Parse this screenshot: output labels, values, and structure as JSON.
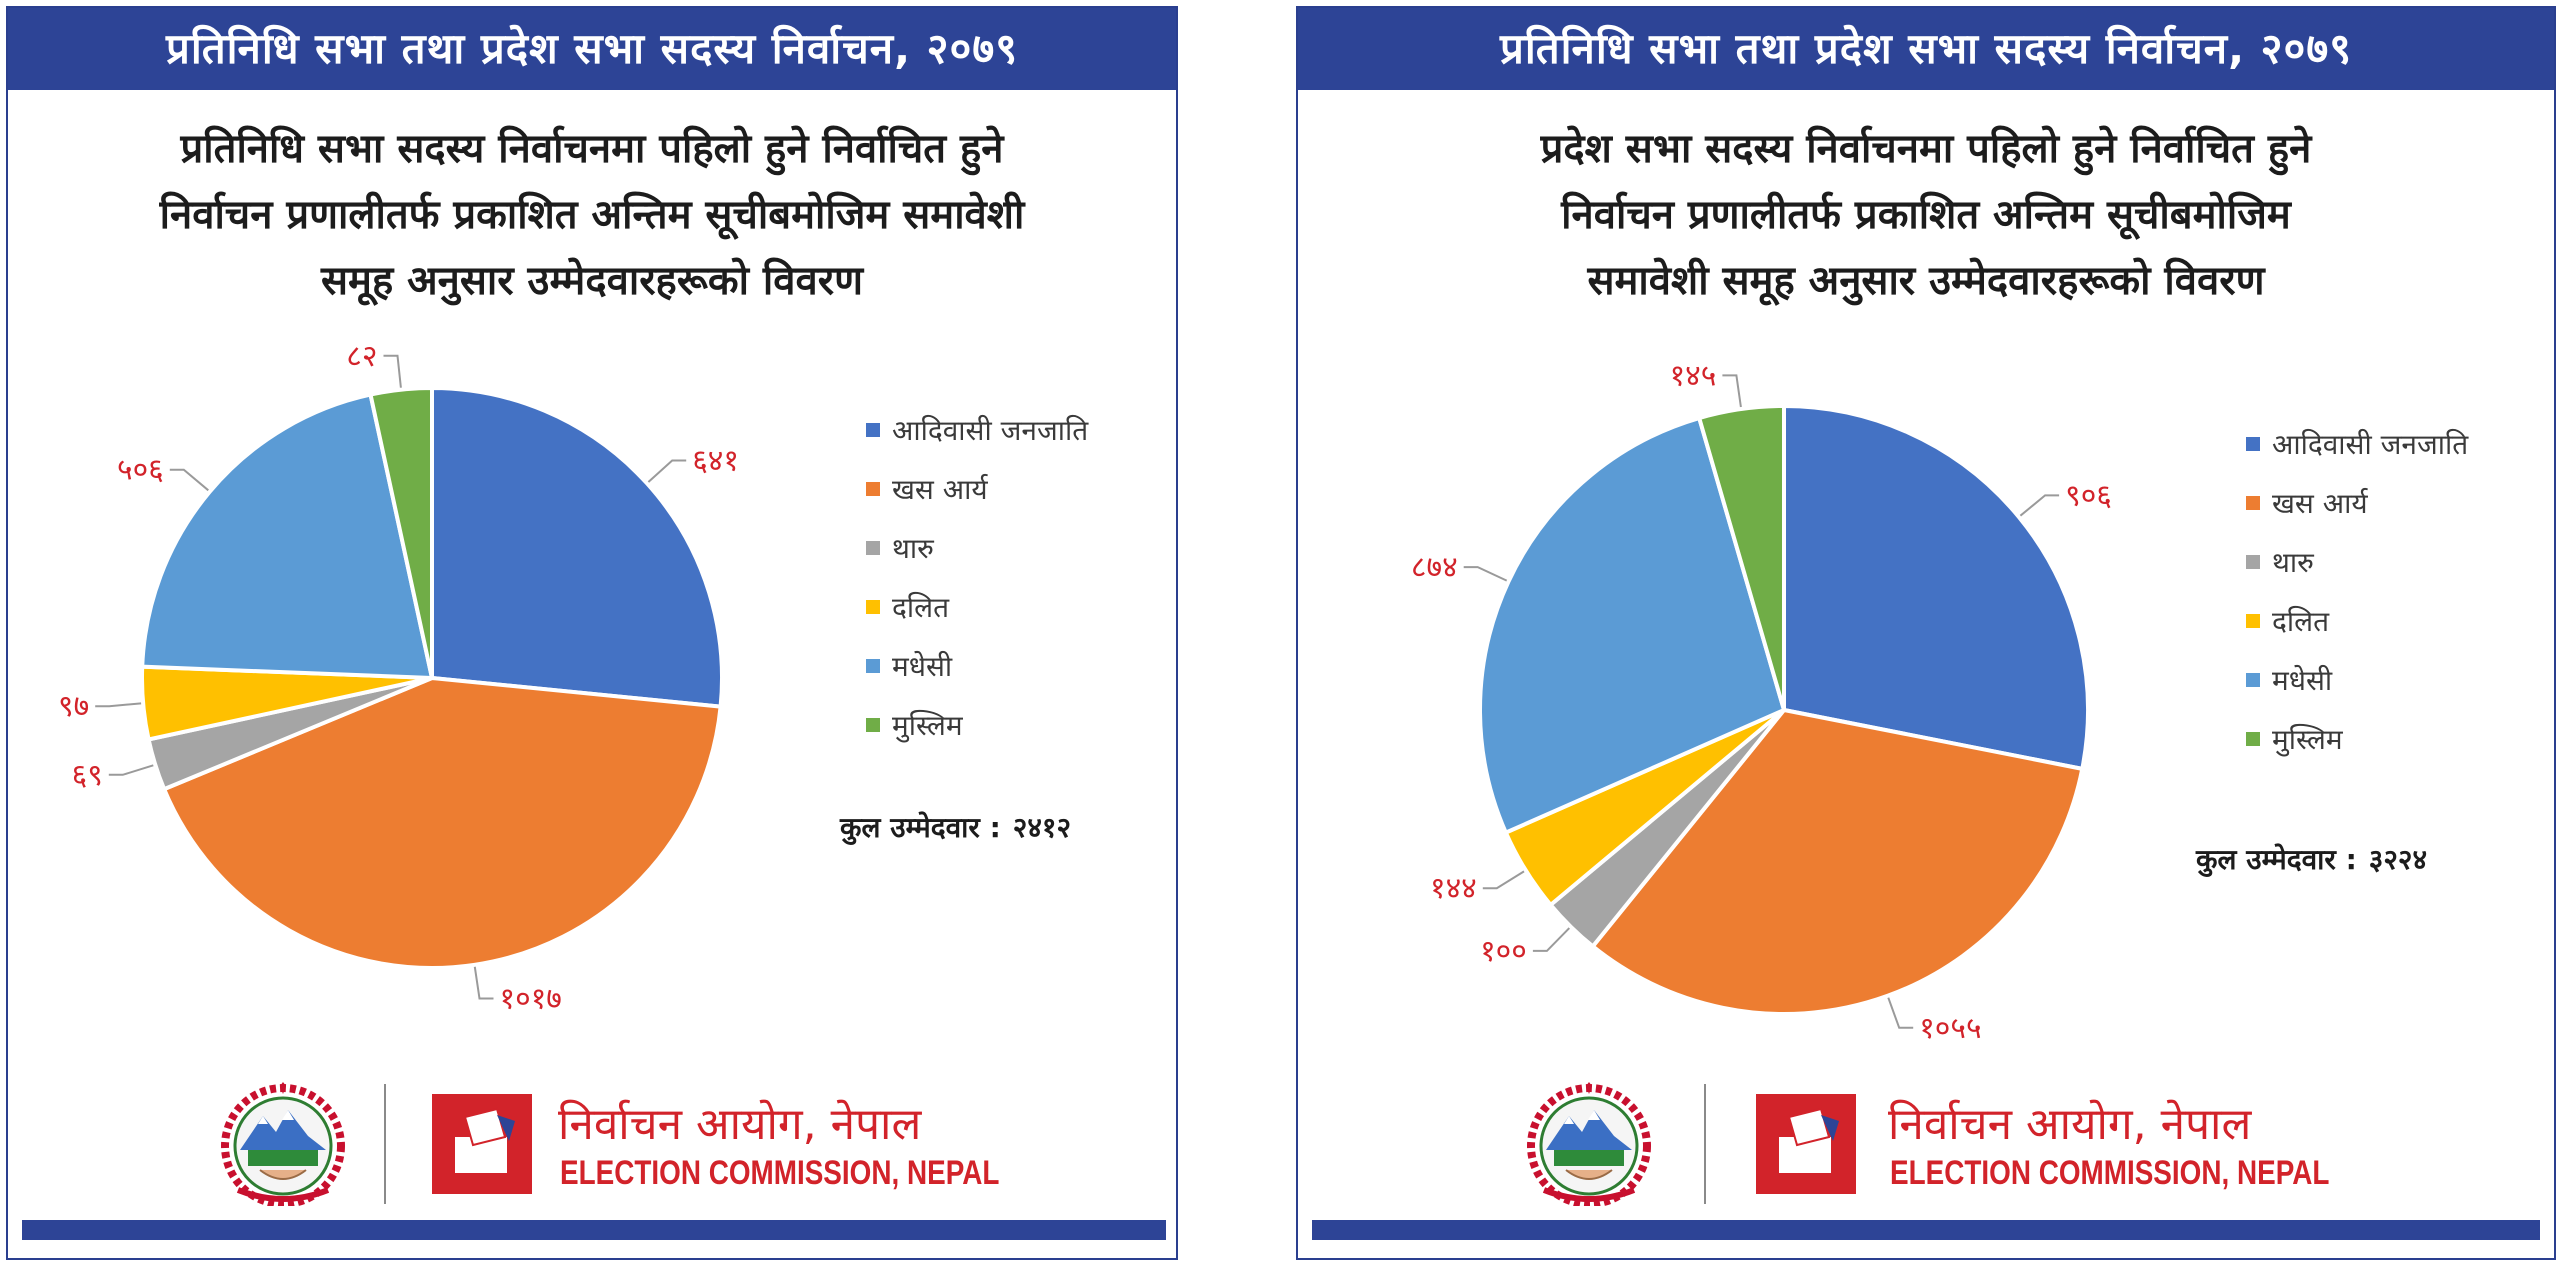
{
  "colors": {
    "banner": "#2d4496",
    "label": "#d2232a",
    "leader": "#9a9a9a",
    "brand_red": "#d2232a"
  },
  "footer": {
    "org_name_ne": "निर्वाचन आयोग, नेपाल",
    "org_name_en": "ELECTION COMMISSION, NEPAL",
    "emblem_icon": "nepal-emblem-icon",
    "logo_icon": "ballot-box-icon"
  },
  "panels": [
    {
      "banner": "प्रतिनिधि सभा तथा प्रदेश सभा सदस्य निर्वाचन, २०७९",
      "subtitle_lines": [
        "प्रतिनिधि सभा सदस्य निर्वाचनमा पहिलो हुने निर्वाचित हुने",
        "निर्वाचन प्रणालीतर्फ प्रकाशित अन्तिम सूचीबमोजिम समावेशी",
        "समूह अनुसार उम्मेदवारहरूको विवरण"
      ],
      "total_label": "कुल उम्मेदवार :",
      "total_value": "२४१२"
    },
    {
      "banner": "प्रतिनिधि सभा तथा प्रदेश सभा सदस्य निर्वाचन, २०७९",
      "subtitle_lines": [
        "प्रदेश सभा सदस्य निर्वाचनमा पहिलो हुने निर्वाचित हुने",
        "निर्वाचन प्रणालीतर्फ प्रकाशित अन्तिम सूचीबमोजिम",
        "समावेशी समूह अनुसार उम्मेदवारहरूको विवरण"
      ],
      "total_label": "कुल उम्मेदवार :",
      "total_value": "३२२४"
    }
  ],
  "chart_data": [
    {
      "type": "pie",
      "start": "12-o'clock, clockwise",
      "legend_position": "right",
      "categories": [
        "आदिवासी जनजाति",
        "खस आर्य",
        "थारु",
        "दलित",
        "मधेसी",
        "मुस्लिम"
      ],
      "values": [
        641,
        1017,
        69,
        97,
        506,
        82
      ],
      "value_labels": [
        "६४१",
        "१०१७",
        "६९",
        "९७",
        "५०६",
        "८२"
      ],
      "colors": [
        "#4472c4",
        "#ed7d31",
        "#a5a5a5",
        "#ffc000",
        "#5b9bd5",
        "#70ad47"
      ],
      "total": 2412
    },
    {
      "type": "pie",
      "start": "12-o'clock, clockwise",
      "legend_position": "right",
      "categories": [
        "आदिवासी जनजाति",
        "खस आर्य",
        "थारु",
        "दलित",
        "मधेसी",
        "मुस्लिम"
      ],
      "values": [
        906,
        1055,
        100,
        144,
        874,
        145
      ],
      "value_labels": [
        "९०६",
        "१०५५",
        "१००",
        "१४४",
        "८७४",
        "१४५"
      ],
      "colors": [
        "#4472c4",
        "#ed7d31",
        "#a5a5a5",
        "#ffc000",
        "#5b9bd5",
        "#70ad47"
      ],
      "total": 3224
    }
  ]
}
